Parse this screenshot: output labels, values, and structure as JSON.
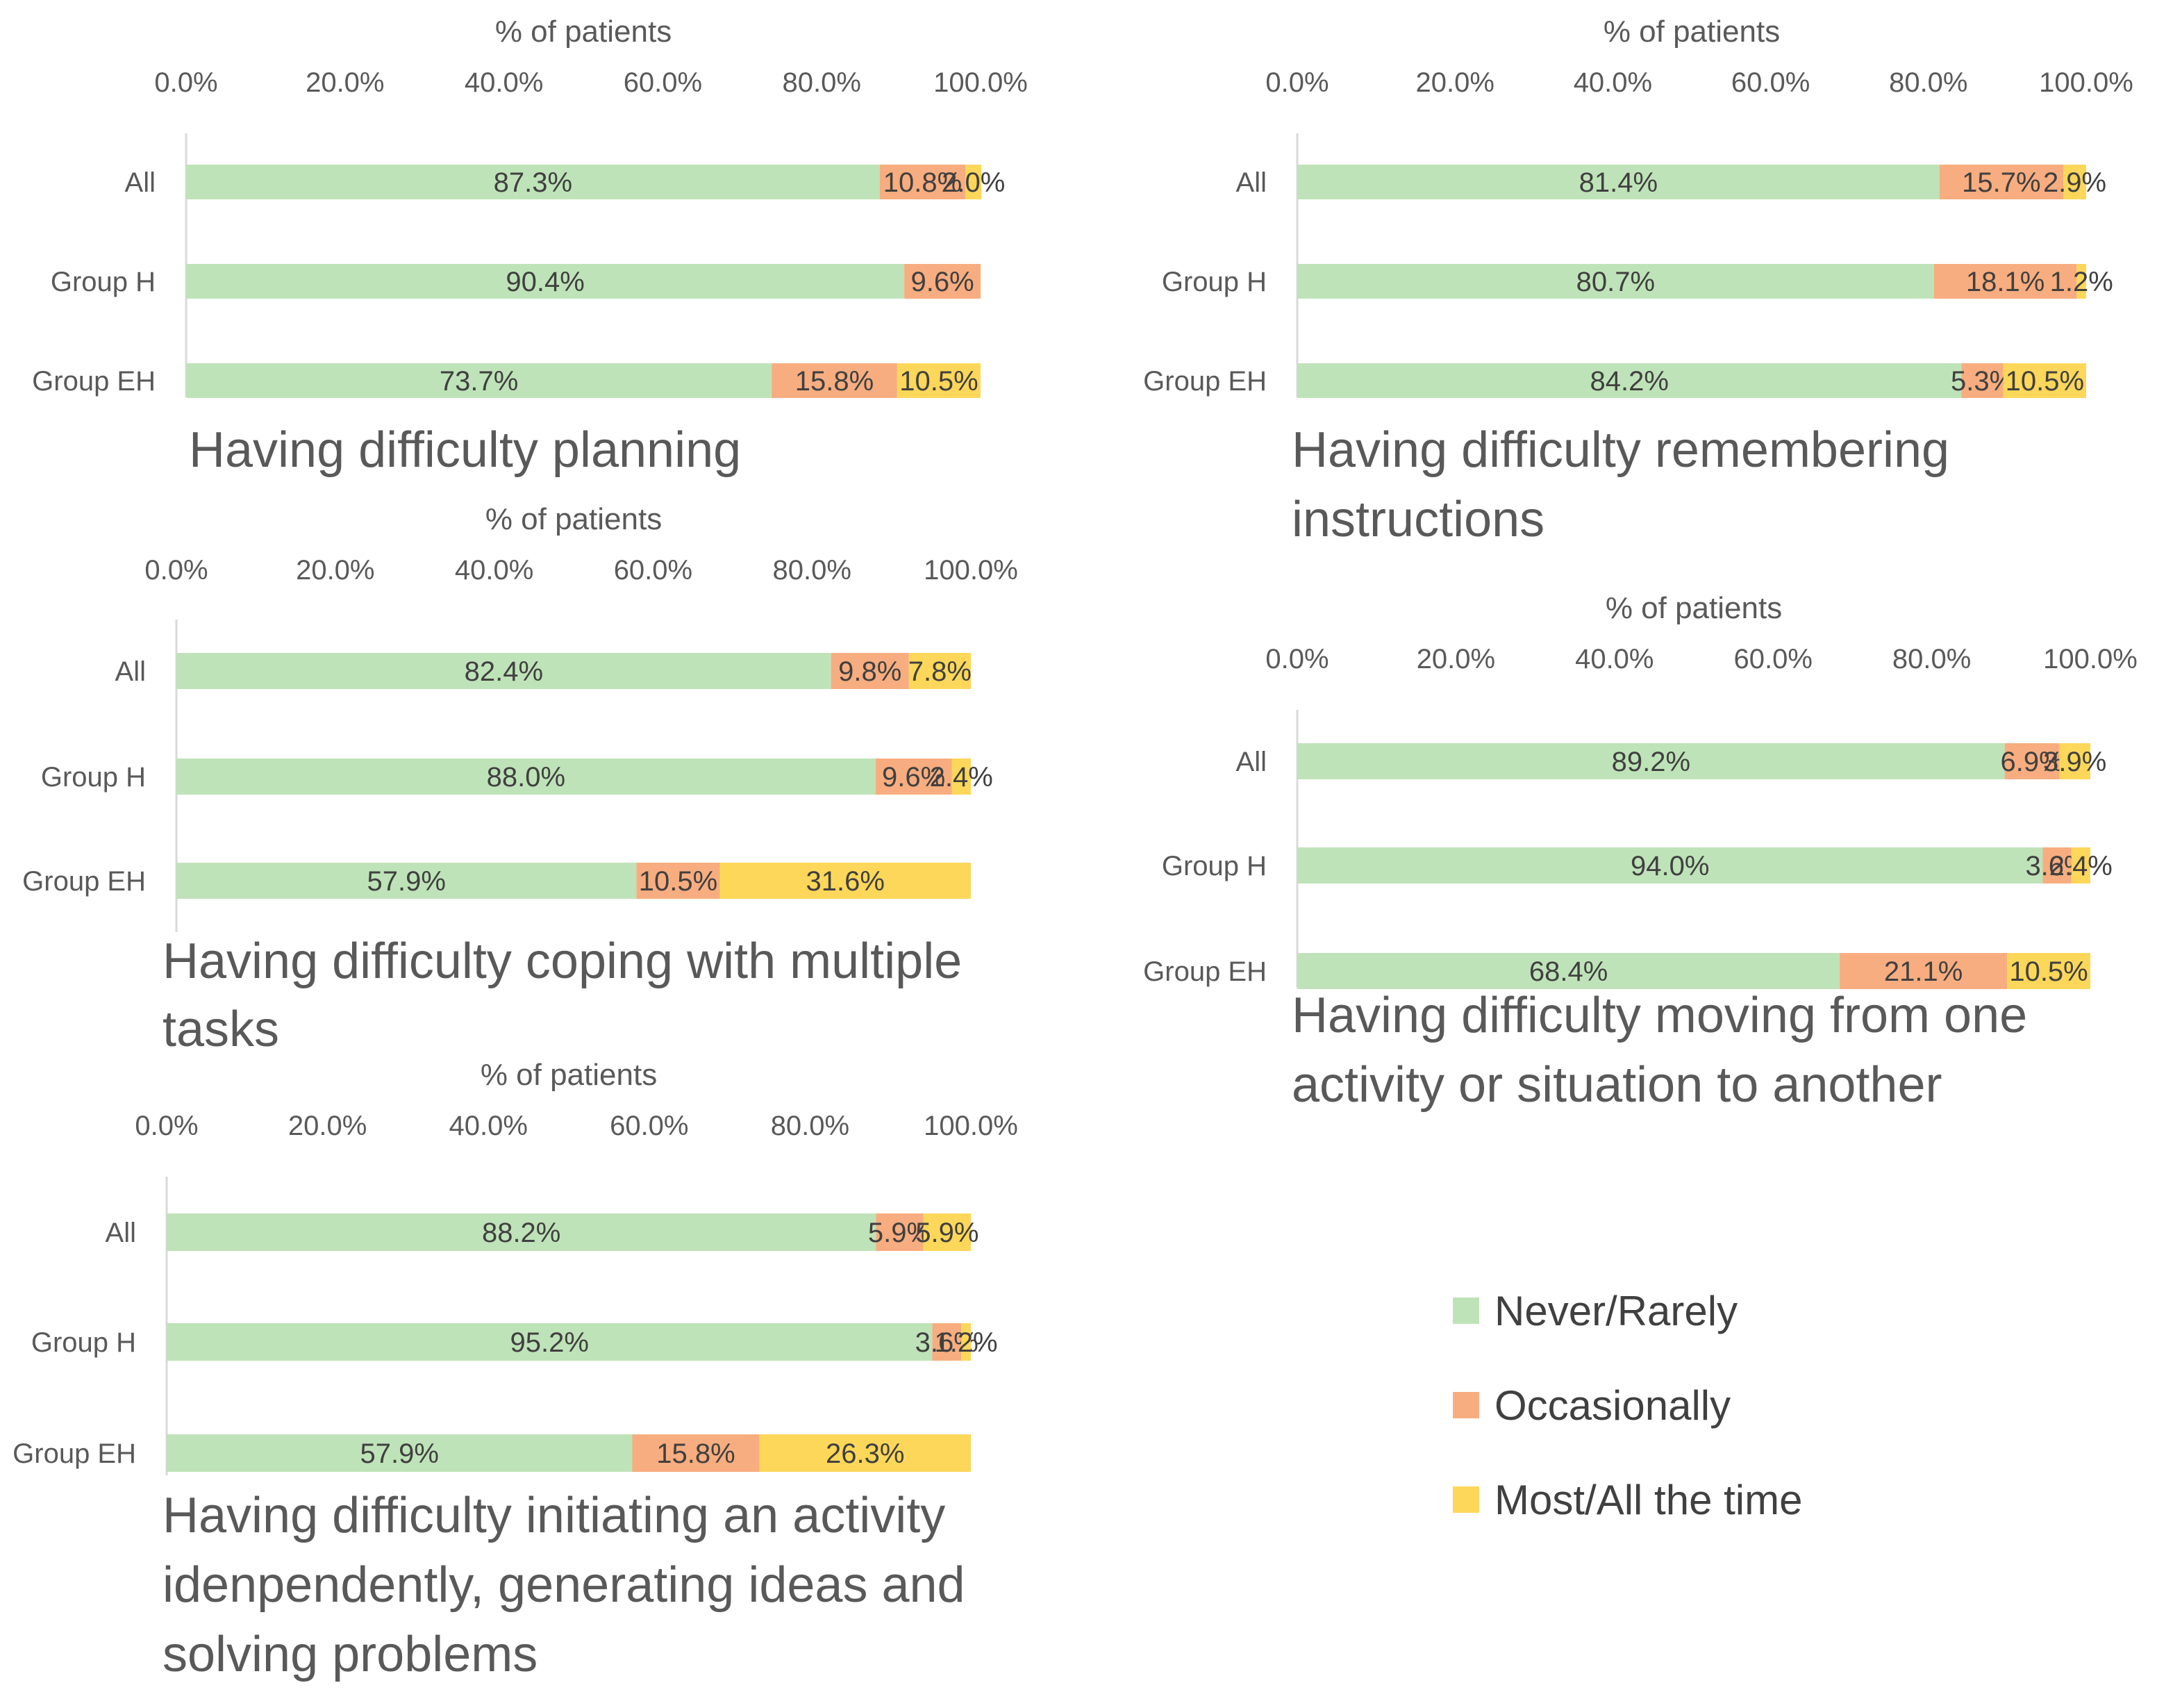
{
  "legend": {
    "entries": [
      {
        "name": "Never/Rarely",
        "color": "#bfe3b8"
      },
      {
        "name": "Occasionally",
        "color": "#f7ad7f"
      },
      {
        "name": "Most/All the time",
        "color": "#fdd75a"
      }
    ],
    "placement": "bottom-right"
  },
  "chart_data": [
    {
      "type": "bar",
      "orientation": "horizontal",
      "stacked": true,
      "title": "Having difficulty planning",
      "xlabel": "% of patients",
      "xlim": [
        0,
        100
      ],
      "xticks": [
        "0.0%",
        "20.0%",
        "40.0%",
        "60.0%",
        "80.0%",
        "100.0%"
      ],
      "categories": [
        "All",
        "Group H",
        "Group EH"
      ],
      "series": [
        {
          "name": "Never/Rarely",
          "values": [
            87.3,
            90.4,
            73.7
          ],
          "labels": [
            "87.3%",
            "90.4%",
            "73.7%"
          ]
        },
        {
          "name": "Occasionally",
          "values": [
            10.8,
            9.6,
            15.8
          ],
          "labels": [
            "10.8%",
            "9.6%",
            "15.8%"
          ]
        },
        {
          "name": "Most/All the time",
          "values": [
            2.0,
            0,
            10.5
          ],
          "labels": [
            "2.0%",
            "",
            "10.5%"
          ]
        }
      ]
    },
    {
      "type": "bar",
      "orientation": "horizontal",
      "stacked": true,
      "title": "Having difficulty remembering instructions",
      "xlabel": "% of patients",
      "xlim": [
        0,
        100
      ],
      "xticks": [
        "0.0%",
        "20.0%",
        "40.0%",
        "60.0%",
        "80.0%",
        "100.0%"
      ],
      "categories": [
        "All",
        "Group H",
        "Group EH"
      ],
      "series": [
        {
          "name": "Never/Rarely",
          "values": [
            81.4,
            80.7,
            84.2
          ],
          "labels": [
            "81.4%",
            "80.7%",
            "84.2%"
          ]
        },
        {
          "name": "Occasionally",
          "values": [
            15.7,
            18.1,
            5.3
          ],
          "labels": [
            "15.7%",
            "18.1%",
            "5.3%"
          ]
        },
        {
          "name": "Most/All the time",
          "values": [
            2.9,
            1.2,
            10.5
          ],
          "labels": [
            "2.9%",
            "1.2%",
            "10.5%"
          ]
        }
      ]
    },
    {
      "type": "bar",
      "orientation": "horizontal",
      "stacked": true,
      "title": "Having difficulty coping with multiple tasks",
      "xlabel": "% of patients",
      "xlim": [
        0,
        100
      ],
      "xticks": [
        "0.0%",
        "20.0%",
        "40.0%",
        "60.0%",
        "80.0%",
        "100.0%"
      ],
      "categories": [
        "All",
        "Group H",
        "Group EH"
      ],
      "series": [
        {
          "name": "Never/Rarely",
          "values": [
            82.4,
            88.0,
            57.9
          ],
          "labels": [
            "82.4%",
            "88.0%",
            "57.9%"
          ]
        },
        {
          "name": "Occasionally",
          "values": [
            9.8,
            9.6,
            10.5
          ],
          "labels": [
            "9.8%",
            "9.6%",
            "10.5%"
          ]
        },
        {
          "name": "Most/All the time",
          "values": [
            7.8,
            2.4,
            31.6
          ],
          "labels": [
            "7.8%",
            "2.4%",
            "31.6%"
          ]
        }
      ]
    },
    {
      "type": "bar",
      "orientation": "horizontal",
      "stacked": true,
      "title": "Having difficulty moving from one activity or situation to another",
      "xlabel": "% of patients",
      "xlim": [
        0,
        100
      ],
      "xticks": [
        "0.0%",
        "20.0%",
        "40.0%",
        "60.0%",
        "80.0%",
        "100.0%"
      ],
      "categories": [
        "All",
        "Group H",
        "Group EH"
      ],
      "series": [
        {
          "name": "Never/Rarely",
          "values": [
            89.2,
            94.0,
            68.4
          ],
          "labels": [
            "89.2%",
            "94.0%",
            "68.4%"
          ]
        },
        {
          "name": "Occasionally",
          "values": [
            6.9,
            3.6,
            21.1
          ],
          "labels": [
            "6.9%",
            "3.6%",
            "21.1%"
          ]
        },
        {
          "name": "Most/All the time",
          "values": [
            3.9,
            2.4,
            10.5
          ],
          "labels": [
            "3.9%",
            "2.4%",
            "10.5%"
          ]
        }
      ]
    },
    {
      "type": "bar",
      "orientation": "horizontal",
      "stacked": true,
      "title": "Having difficulty initiating an activity idenpendently, generating ideas and solving problems",
      "xlabel": "% of patients",
      "xlim": [
        0,
        100
      ],
      "xticks": [
        "0.0%",
        "20.0%",
        "40.0%",
        "60.0%",
        "80.0%",
        "100.0%"
      ],
      "categories": [
        "All",
        "Group H",
        "Group EH"
      ],
      "series": [
        {
          "name": "Never/Rarely",
          "values": [
            88.2,
            95.2,
            57.9
          ],
          "labels": [
            "88.2%",
            "95.2%",
            "57.9%"
          ]
        },
        {
          "name": "Occasionally",
          "values": [
            5.9,
            3.6,
            15.8
          ],
          "labels": [
            "5.9%",
            "3.6%",
            "15.8%"
          ]
        },
        {
          "name": "Most/All the time",
          "values": [
            5.9,
            1.2,
            26.3
          ],
          "labels": [
            "5.9%",
            "1.2%",
            "26.3%"
          ]
        }
      ]
    }
  ]
}
